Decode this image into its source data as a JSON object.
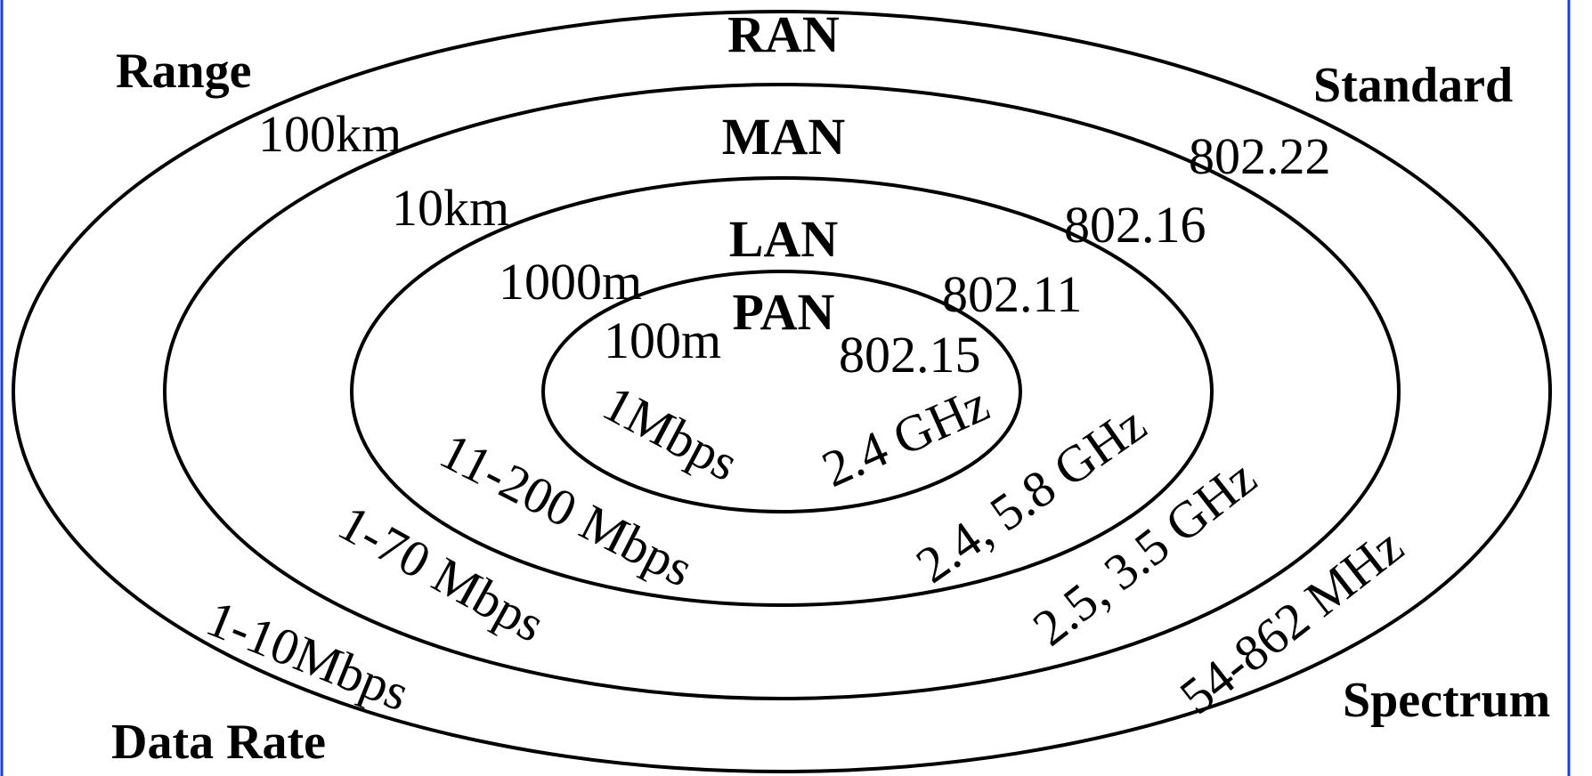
{
  "colors": {
    "network_label": "#1a3fe0",
    "ring_stroke": "#000000",
    "frame": "#1a3fe0",
    "text": "#000000"
  },
  "corners": {
    "range": "Range",
    "standard": "Standard",
    "data_rate": "Data Rate",
    "spectrum": "Spectrum"
  },
  "rings": [
    {
      "network": "PAN",
      "range": "100m",
      "standard": "802.15",
      "data_rate": "1Mbps",
      "spectrum": "2.4 GHz"
    },
    {
      "network": "LAN",
      "range": "1000m",
      "standard": "802.11",
      "data_rate": "11-200 Mbps",
      "spectrum": "2.4, 5.8 GHz"
    },
    {
      "network": "MAN",
      "range": "10km",
      "standard": "802.16",
      "data_rate": "1-70 Mbps",
      "spectrum": "2.5, 3.5 GHz"
    },
    {
      "network": "RAN",
      "range": "100km",
      "standard": "802.22",
      "data_rate": "1-10Mbps",
      "spectrum": "54-862 MHz"
    }
  ]
}
